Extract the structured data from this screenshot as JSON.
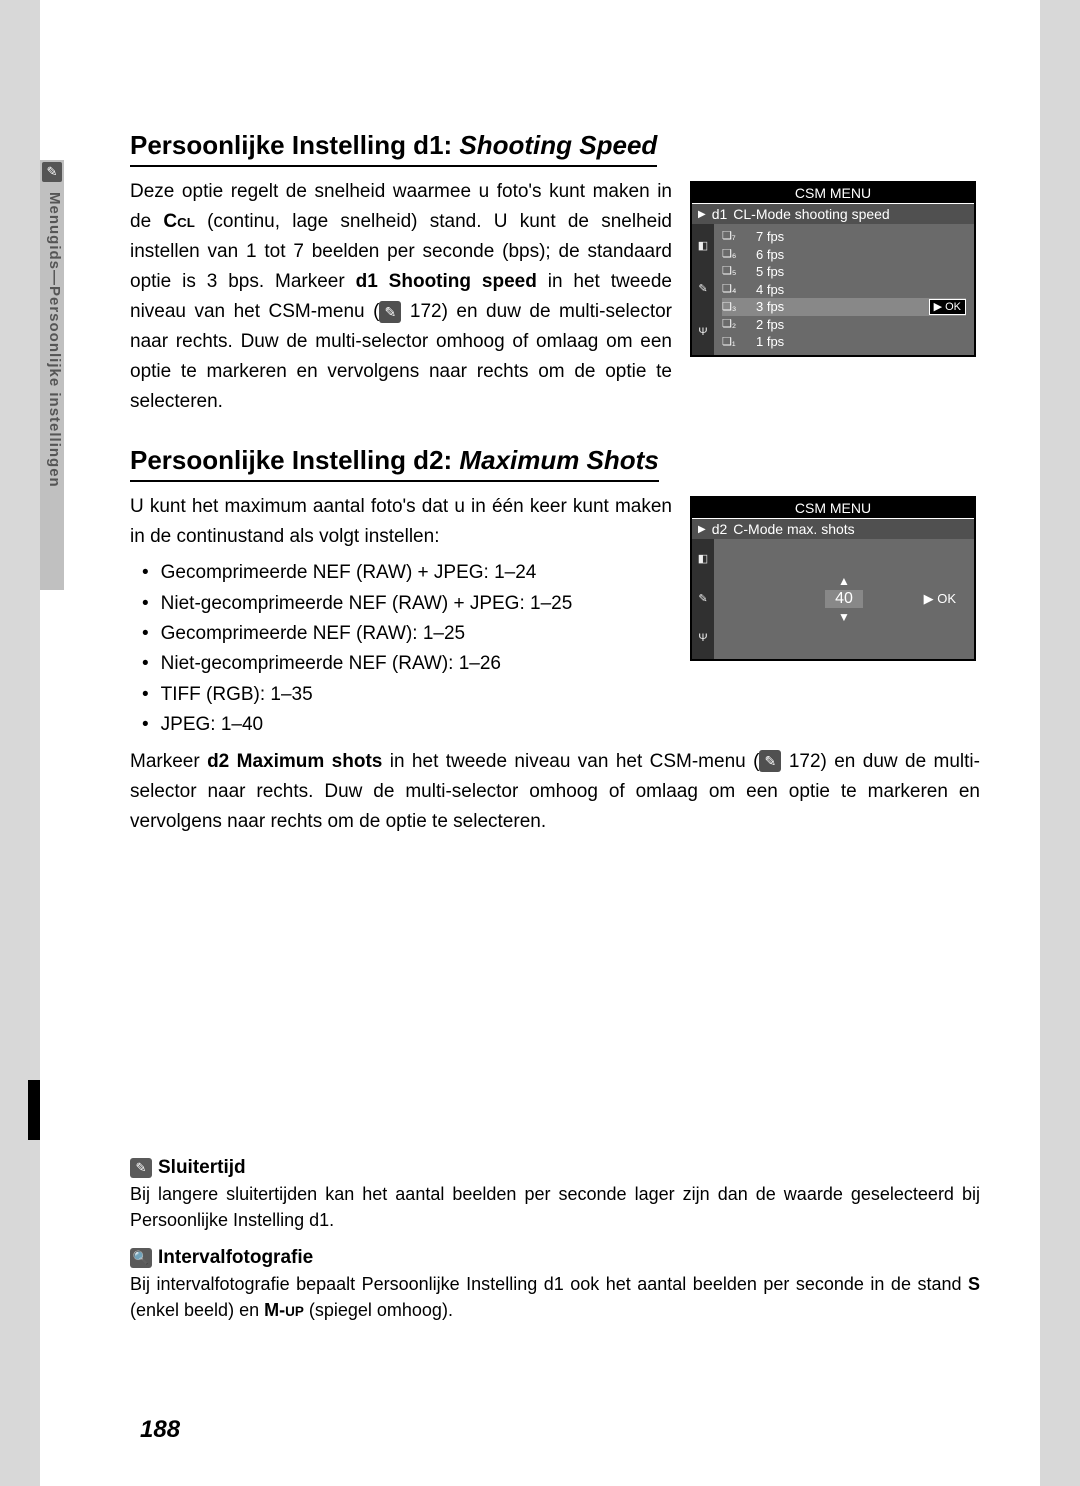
{
  "sidebar": {
    "label": "Menugids—Persoonlijke instellingen"
  },
  "section_d1": {
    "heading_prefix": "Persoonlijke Instelling d1: ",
    "heading_italic": "Shooting Speed",
    "para_a": "Deze optie regelt de snelheid waarmee u foto's kunt maken in de ",
    "para_cl": "CL",
    "para_b": " (continu, lage snelheid) stand. U kunt de snelheid instellen van 1 tot 7 beelden per seconde (bps); de standaard optie is 3 bps. Markeer ",
    "para_bold": "d1 Shooting speed",
    "para_c": " in het tweede niveau van het CSM-menu (",
    "para_ref": " 172) en duw de multi-selector naar rechts. Duw de multi-selector omhoog of omlaag om een optie te markeren en vervolgens naar rechts om de optie te selecteren."
  },
  "screen1": {
    "title": "CSM MENU",
    "sub_code": "d1",
    "sub_label": "CL-Mode shooting speed",
    "options": [
      {
        "n": "7",
        "label": "7 fps"
      },
      {
        "n": "6",
        "label": "6 fps"
      },
      {
        "n": "5",
        "label": "5 fps"
      },
      {
        "n": "4",
        "label": "4 fps"
      },
      {
        "n": "3",
        "label": "3 fps",
        "selected": true
      },
      {
        "n": "2",
        "label": "2 fps"
      },
      {
        "n": "1",
        "label": "1 fps"
      }
    ],
    "ok": "▶ OK"
  },
  "section_d2": {
    "heading_prefix": "Persoonlijke Instelling d2: ",
    "heading_italic": "Maximum Shots",
    "intro": "U kunt het maximum aantal foto's dat u in één keer kunt maken in de continustand als volgt instellen:",
    "bullets": [
      "Gecomprimeerde NEF (RAW) + JPEG: 1–24",
      "Niet-gecomprimeerde NEF (RAW) + JPEG: 1–25",
      "Gecomprimeerde NEF (RAW): 1–25",
      "Niet-gecomprimeerde NEF (RAW): 1–26",
      "TIFF (RGB): 1–35",
      "JPEG: 1–40"
    ],
    "after_a": "Markeer ",
    "after_bold": "d2 Maximum shots",
    "after_b": " in het tweede niveau van het CSM-menu (",
    "after_ref": " 172) en duw de multi-selector naar rechts. Duw de multi-selector omhoog of omlaag om een optie te markeren en vervolgens naar rechts om de optie te selecteren."
  },
  "screen2": {
    "title": "CSM MENU",
    "sub_code": "d2",
    "sub_label": "C-Mode max. shots",
    "value": "40",
    "ok": "▶ OK"
  },
  "note1": {
    "title": "Sluitertijd",
    "text": "Bij langere sluitertijden kan het aantal beelden per seconde lager zijn dan de waarde geselecteerd bij Persoonlijke Instelling d1."
  },
  "note2": {
    "title": "Intervalfotografie",
    "text_a": "Bij intervalfotografie bepaalt Persoonlijke Instelling d1 ook het aantal beelden per seconde in de stand ",
    "text_s": "S",
    "text_b": " (enkel beeld) en ",
    "text_m": "M-UP",
    "text_c": " (spiegel omhoog)."
  },
  "page_number": "188"
}
